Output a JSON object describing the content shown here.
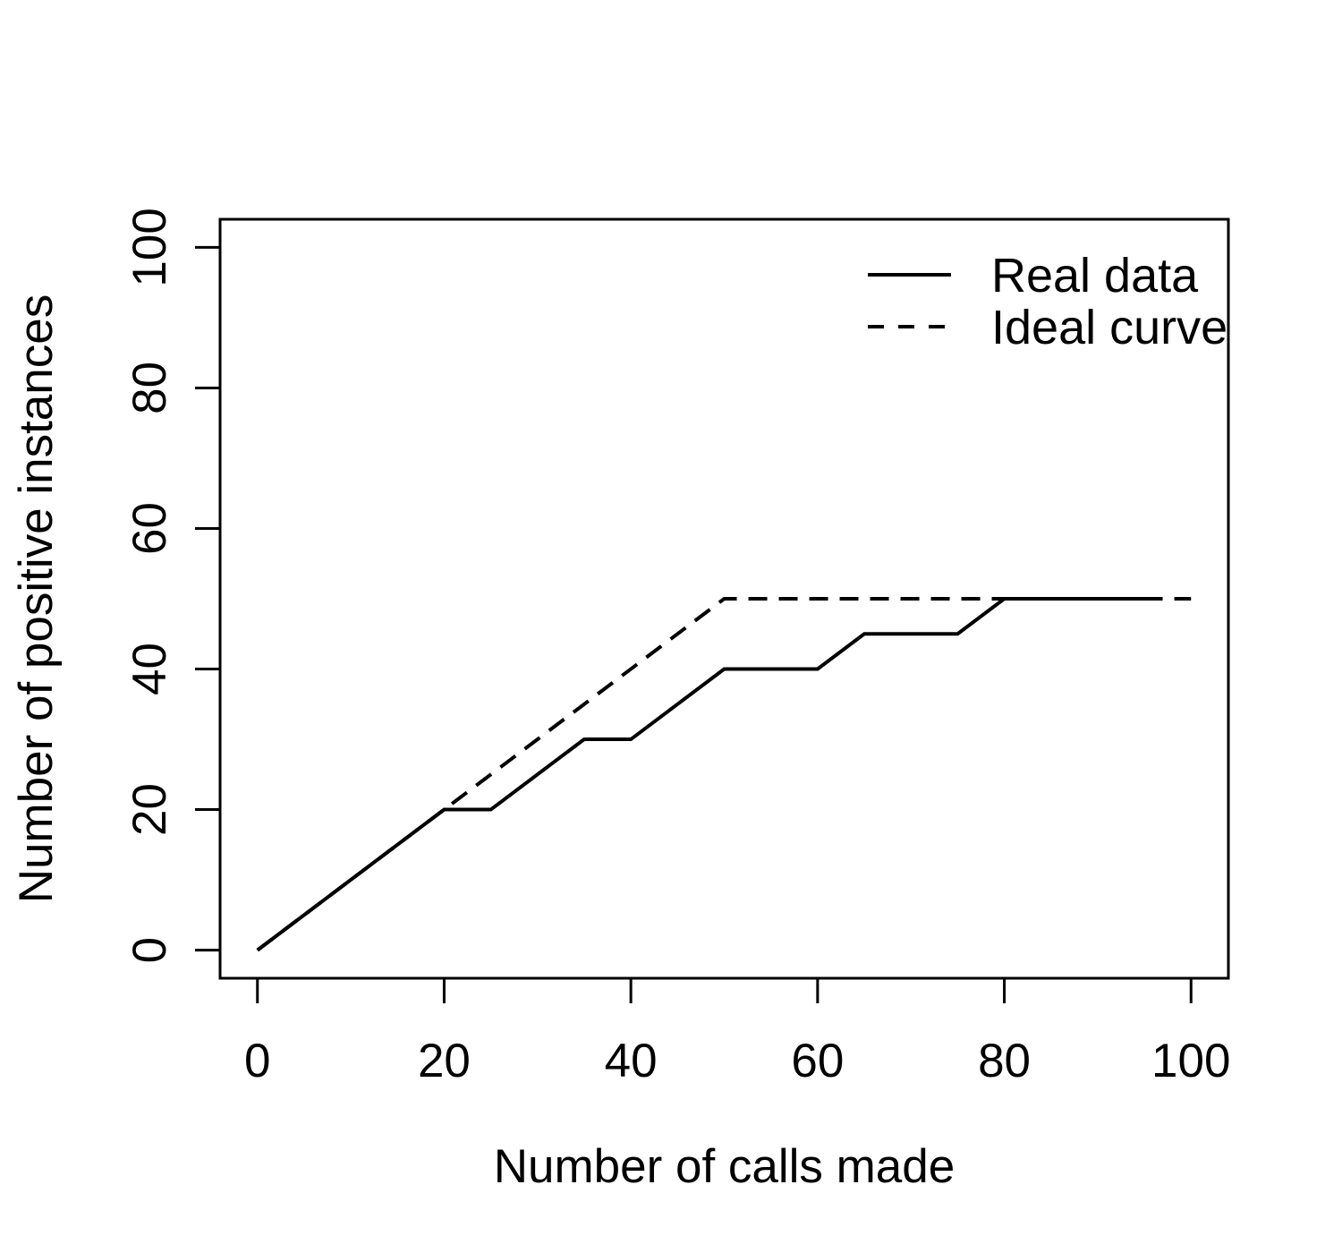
{
  "figure": {
    "background": "#ffffff",
    "foreground": "#000000"
  },
  "chart_data": {
    "type": "line",
    "xlabel": "Number of calls made",
    "ylabel": "Number of positive instances",
    "xlim": [
      0,
      100
    ],
    "ylim": [
      0,
      100
    ],
    "xticks": [
      0,
      20,
      40,
      60,
      80,
      100
    ],
    "yticks": [
      0,
      20,
      40,
      60,
      80,
      100
    ],
    "xtick_labels": [
      "0",
      "20",
      "40",
      "60",
      "80",
      "100"
    ],
    "ytick_labels": [
      "0",
      "20",
      "40",
      "60",
      "80",
      "100"
    ],
    "grid": false,
    "legend": {
      "position": "top-right",
      "border": "none",
      "items": [
        {
          "label": "Real data",
          "line_style": "solid"
        },
        {
          "label": "Ideal curve",
          "line_style": "dashed"
        }
      ]
    },
    "series": [
      {
        "name": "Real data",
        "line_style": "solid",
        "color": "#000000",
        "points": [
          [
            0,
            0
          ],
          [
            20,
            20
          ],
          [
            25,
            20
          ],
          [
            35,
            30
          ],
          [
            40,
            30
          ],
          [
            50,
            40
          ],
          [
            60,
            40
          ],
          [
            65,
            45
          ],
          [
            75,
            45
          ],
          [
            80,
            50
          ],
          [
            95,
            50
          ]
        ]
      },
      {
        "name": "Ideal curve",
        "line_style": "dashed",
        "color": "#000000",
        "points": [
          [
            0,
            0
          ],
          [
            50,
            50
          ],
          [
            100,
            50
          ]
        ]
      }
    ]
  }
}
